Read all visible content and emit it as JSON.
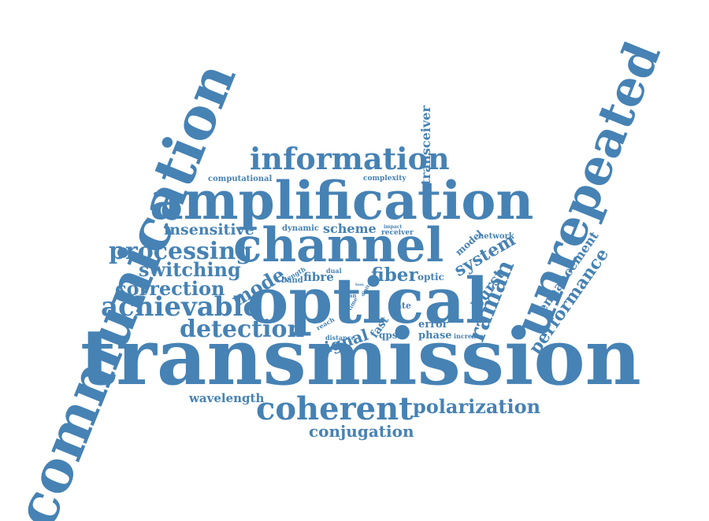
{
  "color": "#4682b4",
  "words": [
    {
      "text": "communication",
      "weight": 10
    },
    {
      "text": "transmission",
      "weight": 10
    },
    {
      "text": "unrepeated",
      "weight": 8
    },
    {
      "text": "optical",
      "weight": 8
    },
    {
      "text": "amplification",
      "weight": 7
    },
    {
      "text": "channel",
      "weight": 7
    },
    {
      "text": "coherent",
      "weight": 5
    },
    {
      "text": "information",
      "weight": 5
    },
    {
      "text": "achievable",
      "weight": 4
    },
    {
      "text": "processing",
      "weight": 4
    },
    {
      "text": "raman",
      "weight": 4
    },
    {
      "text": "detection",
      "weight": 4
    },
    {
      "text": "correction",
      "weight": 3
    },
    {
      "text": "switching",
      "weight": 3
    },
    {
      "text": "polarization",
      "weight": 3
    },
    {
      "text": "mode",
      "weight": 3
    },
    {
      "text": "performance",
      "weight": 3
    },
    {
      "text": "conjugation",
      "weight": 2
    },
    {
      "text": "fiber",
      "weight": 3
    },
    {
      "text": "system",
      "weight": 2
    },
    {
      "text": "insensitive",
      "weight": 2
    },
    {
      "text": "scheme",
      "weight": 2
    },
    {
      "text": "signal",
      "weight": 2
    },
    {
      "text": "burst",
      "weight": 2
    },
    {
      "text": "enhancement",
      "weight": 2
    },
    {
      "text": "transceiver",
      "weight": 2
    },
    {
      "text": "wavelength",
      "weight": 2
    },
    {
      "text": "fibre",
      "weight": 2
    },
    {
      "text": "model",
      "weight": 1
    },
    {
      "text": "fast",
      "weight": 1
    },
    {
      "text": "error",
      "weight": 1
    },
    {
      "text": "phase",
      "weight": 1
    },
    {
      "text": "qpsk",
      "weight": 1
    },
    {
      "text": "optic",
      "weight": 1
    },
    {
      "text": "rate",
      "weight": 1
    },
    {
      "text": "computational",
      "weight": 1
    },
    {
      "text": "complexity",
      "weight": 1
    },
    {
      "text": "dynamic",
      "weight": 1
    },
    {
      "text": "receiver",
      "weight": 1
    },
    {
      "text": "network",
      "weight": 1
    },
    {
      "text": "band",
      "weight": 1
    },
    {
      "text": "dual",
      "weight": 1
    },
    {
      "text": "length",
      "weight": 1
    },
    {
      "text": "span",
      "weight": 1
    },
    {
      "text": "reach",
      "weight": 1
    },
    {
      "text": "distance",
      "weight": 1
    },
    {
      "text": "increase",
      "weight": 1
    },
    {
      "text": "impact",
      "weight": 1
    },
    {
      "text": "time",
      "weight": 1
    },
    {
      "text": "digital",
      "weight": 1
    },
    {
      "text": "loss",
      "weight": 1
    }
  ]
}
